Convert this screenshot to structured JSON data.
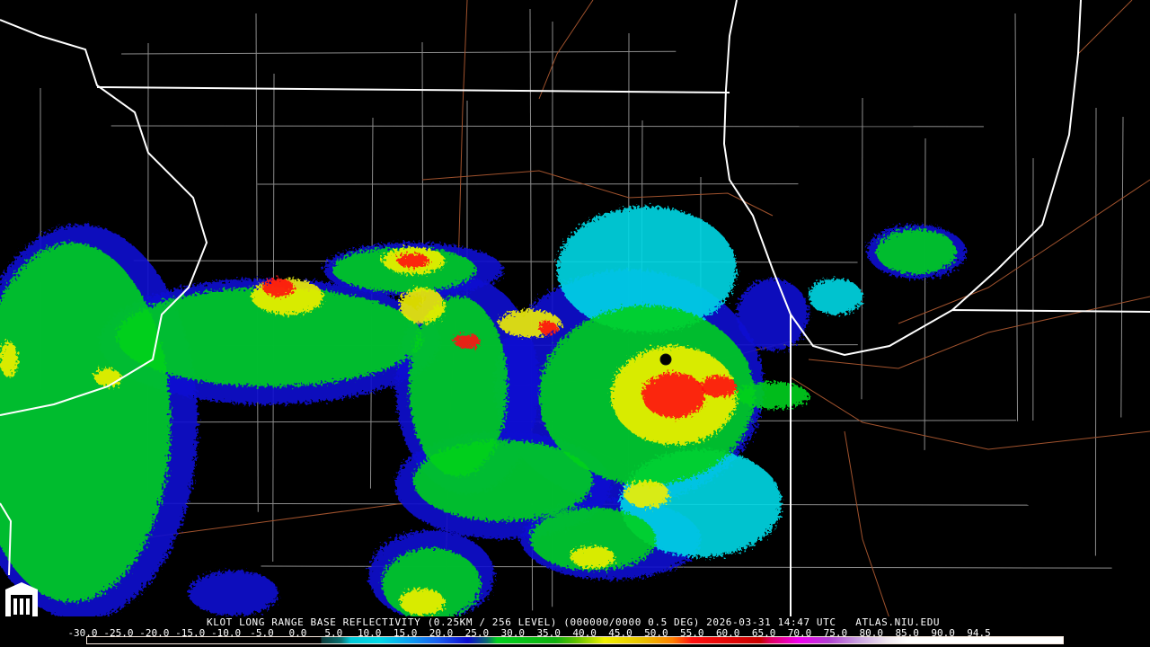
{
  "product": {
    "title": "KLOT LONG RANGE BASE REFLECTIVITY (0.25KM / 256 LEVEL) (000000/0000 0.5 DEG) 2026-03-31 14:47 UTC   ATLAS.NIU.EDU"
  },
  "legend": {
    "unit_hint": "dBZ",
    "ticks": [
      "-30.0",
      "-25.0",
      "-20.0",
      "-15.0",
      "-10.0",
      "-5.0",
      "0.0",
      "5.0",
      "10.0",
      "15.0",
      "20.0",
      "25.0",
      "30.0",
      "35.0",
      "40.0",
      "45.0",
      "50.0",
      "55.0",
      "60.0",
      "65.0",
      "70.0",
      "75.0",
      "80.0",
      "85.0",
      "90.0",
      "94.5"
    ],
    "colors": {
      "light": "#00d8e6",
      "blue": "#0a0ad0",
      "green": "#00d01e",
      "yellow": "#f0f000",
      "orange": "#ff8000",
      "red": "#ff1010",
      "darkred": "#c80000",
      "magenta": "#f000f0"
    }
  },
  "logo": {
    "text": "NIU"
  },
  "map": {
    "radar_site": "KLOT",
    "colors": {
      "state_border": "#ffffff",
      "county_border": "#8c8c8c",
      "highway": "#a0522d"
    }
  }
}
